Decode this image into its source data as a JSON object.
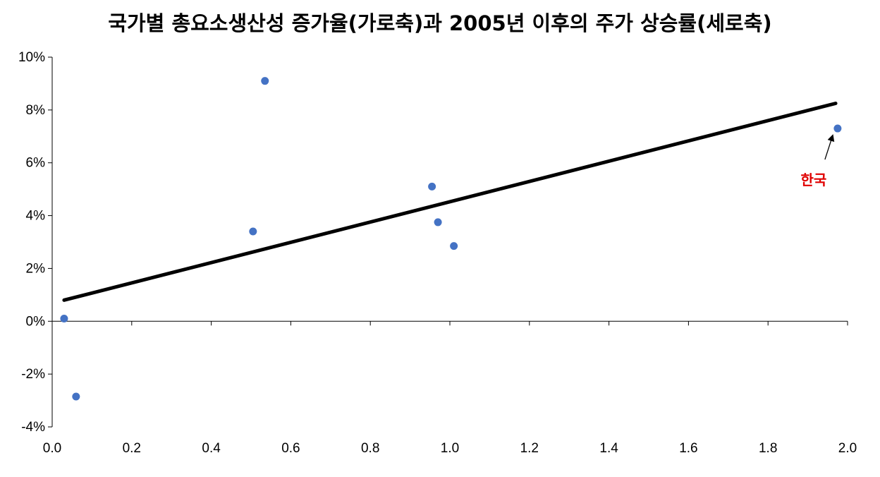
{
  "chart_data": {
    "type": "scatter",
    "title": "국가별 총요소생산성 증가율(가로축)과 2005년 이후의 주가 상승률(세로축)",
    "xlabel": "",
    "ylabel": "",
    "xlim": [
      0.0,
      2.0
    ],
    "ylim": [
      -4,
      10
    ],
    "x_ticks": [
      "0.0",
      "0.2",
      "0.4",
      "0.6",
      "0.8",
      "1.0",
      "1.2",
      "1.4",
      "1.6",
      "1.8",
      "2.0"
    ],
    "y_ticks": [
      "10%",
      "8%",
      "6%",
      "4%",
      "2%",
      "0%",
      "-2%",
      "-4%"
    ],
    "grid": false,
    "points": [
      {
        "x": 0.03,
        "y": 0.1
      },
      {
        "x": 0.06,
        "y": -2.85
      },
      {
        "x": 0.505,
        "y": 3.4
      },
      {
        "x": 0.535,
        "y": 9.1
      },
      {
        "x": 0.955,
        "y": 5.1
      },
      {
        "x": 0.97,
        "y": 3.75
      },
      {
        "x": 1.01,
        "y": 2.85
      },
      {
        "x": 1.975,
        "y": 7.3
      }
    ],
    "trendline": {
      "x0": 0.03,
      "y0": 0.8,
      "x1": 1.97,
      "y1": 8.25
    },
    "annotation": {
      "text": "한국",
      "x": 1.975,
      "y": 7.3,
      "color": "#e00000"
    },
    "colors": {
      "points": "#4472c4",
      "trendline": "#000000",
      "axis": "#000000"
    }
  }
}
